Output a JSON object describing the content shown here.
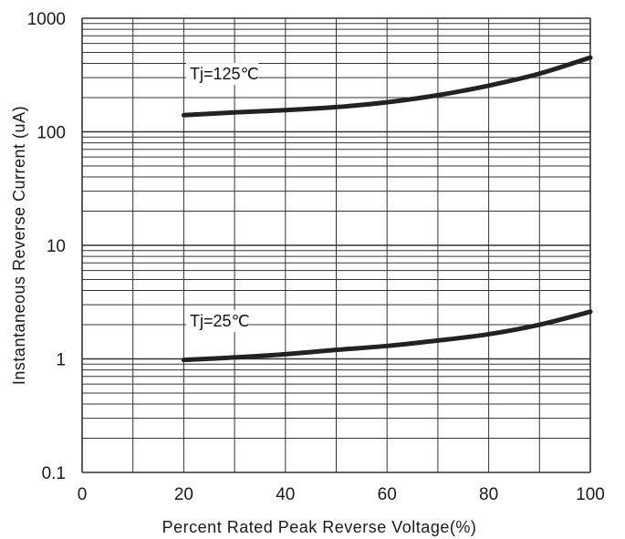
{
  "chart_data": {
    "type": "line",
    "title": "",
    "xlabel": "Percent Rated Peak Reverse Voltage(%)",
    "ylabel": "Instantaneous Reverse Current (uA)",
    "xlim": [
      0,
      100
    ],
    "ylim": [
      0.1,
      1000
    ],
    "y_scale": "log",
    "grid": true,
    "x_ticks": [
      0,
      20,
      40,
      60,
      80,
      100
    ],
    "x_tick_labels": [
      "0",
      "20",
      "40",
      "60",
      "80",
      "100"
    ],
    "y_ticks": [
      0.1,
      1,
      10,
      100,
      1000
    ],
    "y_tick_labels": [
      "0.1",
      "1",
      "10",
      "100",
      "1000"
    ],
    "series": [
      {
        "name": "Tj=125℃",
        "x": [
          20,
          30,
          40,
          50,
          60,
          70,
          80,
          90,
          100
        ],
        "y": [
          140,
          148,
          155,
          165,
          182,
          210,
          255,
          325,
          450
        ]
      },
      {
        "name": "Tj=25℃",
        "x": [
          20,
          30,
          40,
          50,
          60,
          70,
          80,
          90,
          100
        ],
        "y": [
          0.98,
          1.03,
          1.1,
          1.2,
          1.3,
          1.45,
          1.65,
          2.0,
          2.6
        ]
      }
    ],
    "colors": {
      "line": "#222222",
      "grid": "#333333",
      "text": "#1a1a1a"
    }
  }
}
